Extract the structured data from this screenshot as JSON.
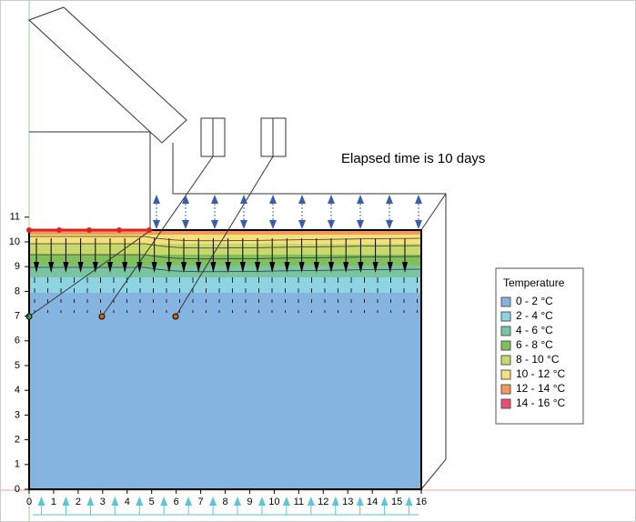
{
  "annotation": "Elapsed time is 10 days",
  "x_axis": {
    "ticks": [
      0,
      1,
      2,
      3,
      4,
      5,
      6,
      7,
      8,
      9,
      10,
      11,
      12,
      13,
      14,
      15,
      16
    ]
  },
  "y_axis": {
    "ticks": [
      0,
      1,
      2,
      3,
      4,
      5,
      6,
      7,
      8,
      9,
      10,
      11
    ]
  },
  "legend": {
    "title": "Temperature",
    "items": [
      {
        "label": "0 - 2 °C",
        "color": "#85b4e0"
      },
      {
        "label": "2 - 4 °C",
        "color": "#8dd3e2"
      },
      {
        "label": "4 - 6 °C",
        "color": "#79c5a2"
      },
      {
        "label": "6 - 8 °C",
        "color": "#80bf5c"
      },
      {
        "label": "8 - 10 °C",
        "color": "#c9d86a"
      },
      {
        "label": "10 - 12 °C",
        "color": "#f6e07c"
      },
      {
        "label": "12 - 14 °C",
        "color": "#f19a5c"
      },
      {
        "label": "14 - 16 °C",
        "color": "#ea4d70"
      }
    ]
  }
}
